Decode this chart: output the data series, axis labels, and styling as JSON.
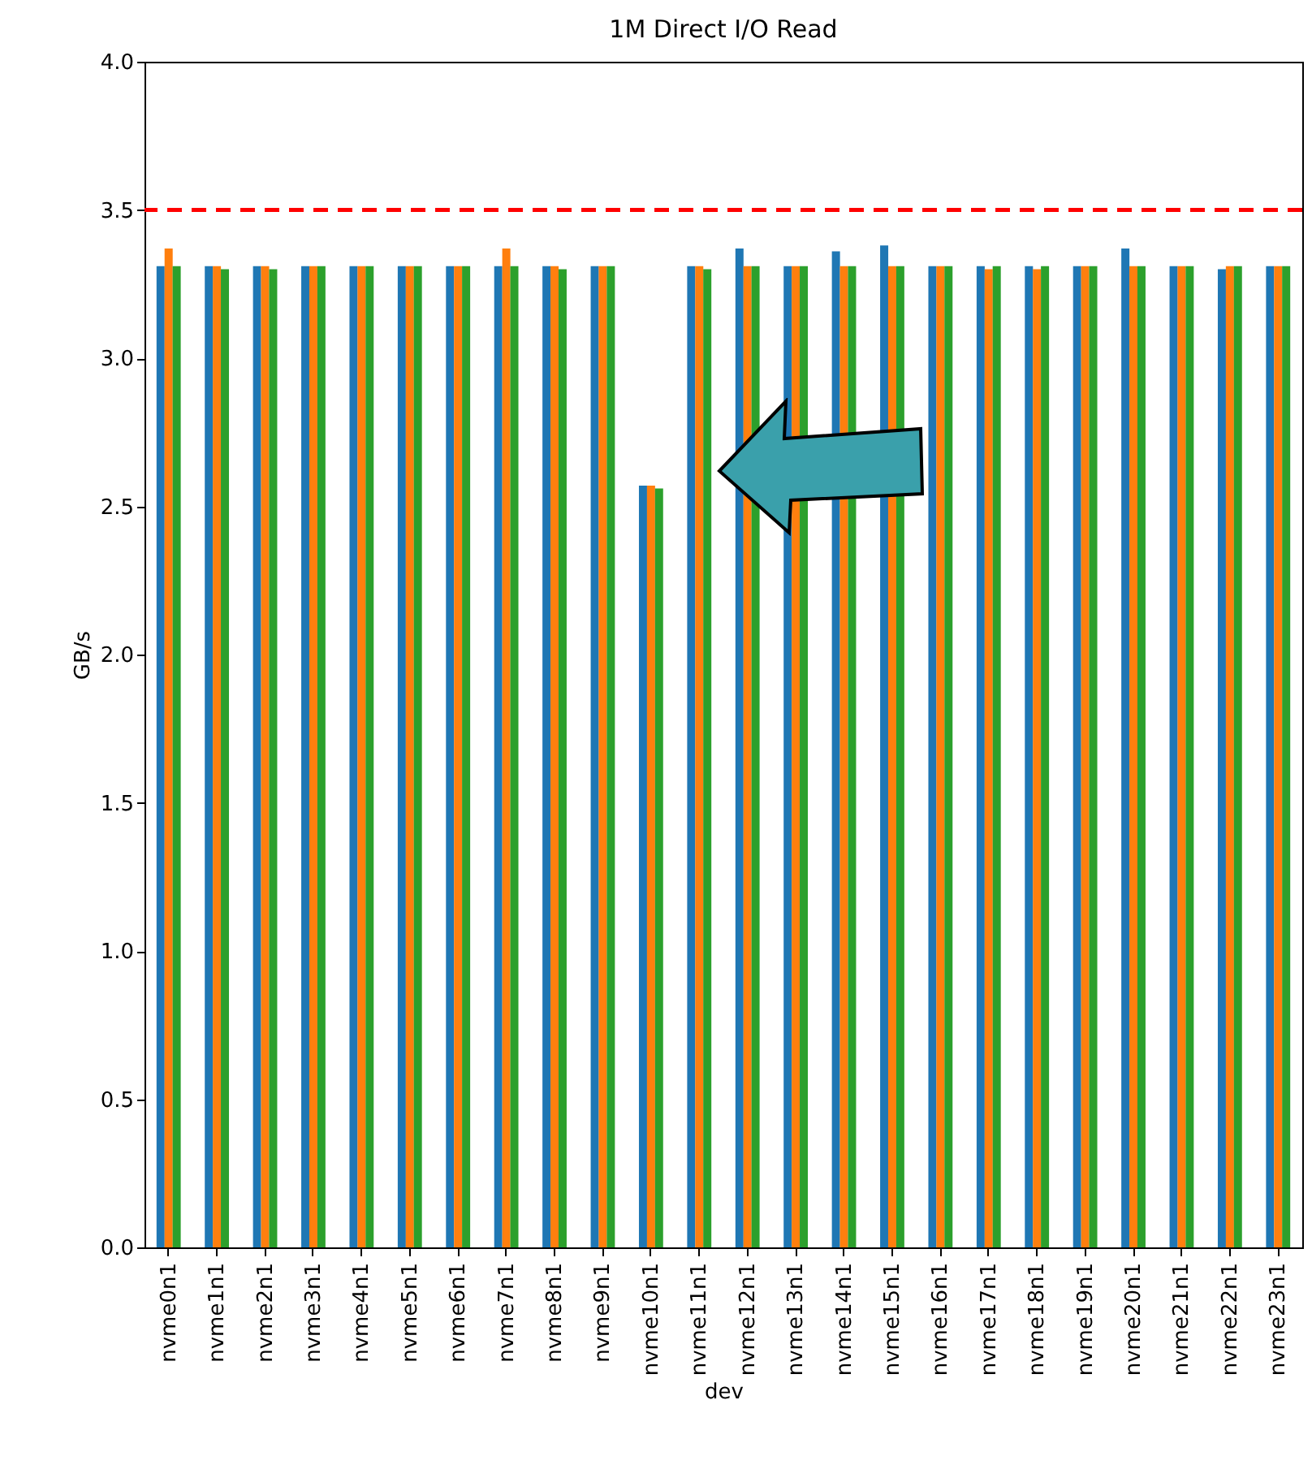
{
  "chart_data": {
    "type": "bar",
    "title": "1M Direct I/O Read",
    "xlabel": "dev",
    "ylabel": "GB/s",
    "categories": [
      "nvme0n1",
      "nvme1n1",
      "nvme2n1",
      "nvme3n1",
      "nvme4n1",
      "nvme5n1",
      "nvme6n1",
      "nvme7n1",
      "nvme8n1",
      "nvme9n1",
      "nvme10n1",
      "nvme11n1",
      "nvme12n1",
      "nvme13n1",
      "nvme14n1",
      "nvme15n1",
      "nvme16n1",
      "nvme17n1",
      "nvme18n1",
      "nvme19n1",
      "nvme20n1",
      "nvme21n1",
      "nvme22n1",
      "nvme23n1"
    ],
    "series": [
      {
        "color": "#1f77b4",
        "values": [
          3.31,
          3.31,
          3.31,
          3.31,
          3.31,
          3.31,
          3.31,
          3.31,
          3.31,
          3.31,
          2.57,
          3.31,
          3.37,
          3.31,
          3.36,
          3.38,
          3.31,
          3.31,
          3.31,
          3.31,
          3.37,
          3.31,
          3.3,
          3.31
        ]
      },
      {
        "color": "#ff7f0e",
        "values": [
          3.37,
          3.31,
          3.31,
          3.31,
          3.31,
          3.31,
          3.31,
          3.37,
          3.31,
          3.31,
          2.57,
          3.31,
          3.31,
          3.31,
          3.31,
          3.31,
          3.31,
          3.3,
          3.3,
          3.31,
          3.31,
          3.31,
          3.31,
          3.31
        ]
      },
      {
        "color": "#2ca02c",
        "values": [
          3.31,
          3.3,
          3.3,
          3.31,
          3.31,
          3.31,
          3.31,
          3.31,
          3.3,
          3.31,
          2.56,
          3.3,
          3.31,
          3.31,
          3.31,
          3.31,
          3.31,
          3.31,
          3.31,
          3.31,
          3.31,
          3.31,
          3.31,
          3.31
        ]
      }
    ],
    "ylim": [
      0,
      4
    ],
    "yticks": [
      {
        "value": 0,
        "label": "0.0"
      },
      {
        "value": 0.5,
        "label": "0.5"
      },
      {
        "value": 1,
        "label": "1.0"
      },
      {
        "value": 1.5,
        "label": "1.5"
      },
      {
        "value": 2,
        "label": "2.0"
      },
      {
        "value": 2.5,
        "label": "2.5"
      },
      {
        "value": 3,
        "label": "3.0"
      },
      {
        "value": 3.5,
        "label": "3.5"
      },
      {
        "value": 4,
        "label": "4.0"
      }
    ],
    "ref_lines": [
      {
        "axis": "y",
        "value": 3.5,
        "label": null,
        "color": "#ff0000",
        "line_style": "dashed"
      }
    ],
    "grid": false,
    "legend": false
  }
}
